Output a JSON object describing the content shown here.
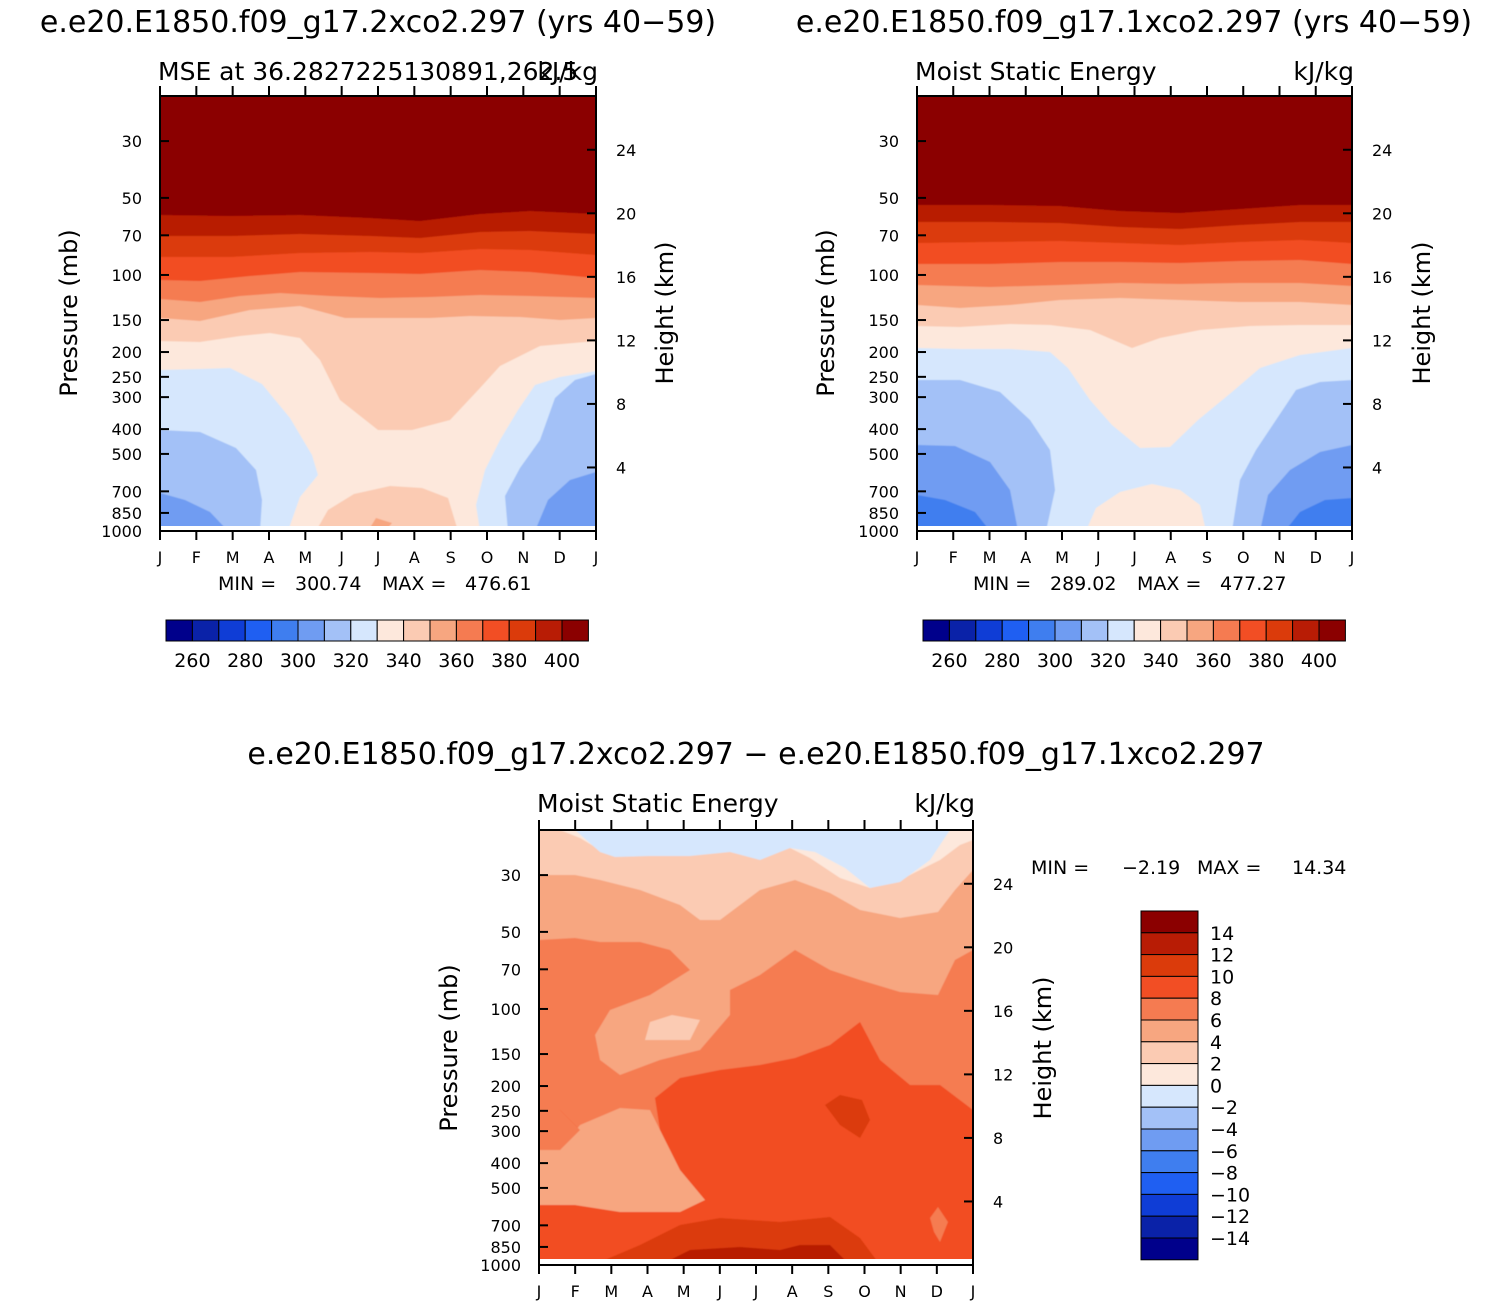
{
  "chart_data": [
    {
      "type": "contour",
      "id": "left",
      "title": "e.e20.E1850.f09_g17.2xco2.297 (yrs 40−59)",
      "subtitle_left": "MSE at 36.2827225130891,262.5",
      "subtitle_right": "kJ/kg",
      "ylabel": "Pressure (mb)",
      "ylabel_right": "Height (km)",
      "x_ticks": [
        "J",
        "F",
        "M",
        "A",
        "M",
        "J",
        "J",
        "A",
        "S",
        "O",
        "N",
        "D",
        "J"
      ],
      "p_ticks": [
        30,
        50,
        70,
        100,
        150,
        200,
        250,
        300,
        400,
        500,
        700,
        850,
        1000
      ],
      "height_ticks": [
        24,
        20,
        16,
        12,
        8,
        4
      ],
      "min_label": "MIN =",
      "min": "300.74",
      "max_label": "MAX =",
      "max": "476.61",
      "colorbar_labels": [
        "260",
        "280",
        "300",
        "320",
        "340",
        "360",
        "380",
        "400"
      ],
      "colorbar_colors": [
        "#00008b",
        "#0a22a8",
        "#0f3dd6",
        "#1f5ff2",
        "#3f7eef",
        "#6f9cf2",
        "#a3c1f7",
        "#d6e7fd",
        "#fde8dc",
        "#fbcbb3",
        "#f7a680",
        "#f57b51",
        "#f24e24",
        "#db3b0b",
        "#b81c05",
        "#8b0000"
      ],
      "levels": [
        250,
        260,
        270,
        280,
        290,
        300,
        310,
        320,
        330,
        340,
        350,
        360,
        370,
        380,
        390,
        400
      ]
    },
    {
      "type": "contour",
      "id": "right",
      "title": "e.e20.E1850.f09_g17.1xco2.297 (yrs 40−59)",
      "subtitle_left": "Moist Static Energy",
      "subtitle_right": "kJ/kg",
      "ylabel": "Pressure (mb)",
      "ylabel_right": "Height (km)",
      "x_ticks": [
        "J",
        "F",
        "M",
        "A",
        "M",
        "J",
        "J",
        "A",
        "S",
        "O",
        "N",
        "D",
        "J"
      ],
      "p_ticks": [
        30,
        50,
        70,
        100,
        150,
        200,
        250,
        300,
        400,
        500,
        700,
        850,
        1000
      ],
      "height_ticks": [
        24,
        20,
        16,
        12,
        8,
        4
      ],
      "min_label": "MIN =",
      "min": "289.02",
      "max_label": "MAX =",
      "max": "477.27",
      "colorbar_labels": [
        "260",
        "280",
        "300",
        "320",
        "340",
        "360",
        "380",
        "400"
      ],
      "colorbar_colors": [
        "#00008b",
        "#0a22a8",
        "#0f3dd6",
        "#1f5ff2",
        "#3f7eef",
        "#6f9cf2",
        "#a3c1f7",
        "#d6e7fd",
        "#fde8dc",
        "#fbcbb3",
        "#f7a680",
        "#f57b51",
        "#f24e24",
        "#db3b0b",
        "#b81c05",
        "#8b0000"
      ],
      "levels": [
        250,
        260,
        270,
        280,
        290,
        300,
        310,
        320,
        330,
        340,
        350,
        360,
        370,
        380,
        390,
        400
      ]
    },
    {
      "type": "contour",
      "id": "diff",
      "title": "e.e20.E1850.f09_g17.2xco2.297 − e.e20.E1850.f09_g17.1xco2.297",
      "subtitle_left": "Moist Static Energy",
      "subtitle_right": "kJ/kg",
      "ylabel": "Pressure (mb)",
      "ylabel_right": "Height (km)",
      "x_ticks": [
        "J",
        "F",
        "M",
        "A",
        "M",
        "J",
        "J",
        "A",
        "S",
        "O",
        "N",
        "D",
        "J"
      ],
      "p_ticks": [
        30,
        50,
        70,
        100,
        150,
        200,
        250,
        300,
        400,
        500,
        700,
        850,
        1000
      ],
      "height_ticks": [
        24,
        20,
        16,
        12,
        8,
        4
      ],
      "min_label": "MIN =",
      "min": "−2.19",
      "max_label": "MAX =",
      "max": "14.34",
      "colorbar_labels": [
        "14",
        "12",
        "10",
        "8",
        "6",
        "4",
        "2",
        "0",
        "−2",
        "−4",
        "−6",
        "−8",
        "−10",
        "−12",
        "−14"
      ],
      "colorbar_colors": [
        "#8b0000",
        "#b81c05",
        "#db3b0b",
        "#f24e24",
        "#f57b51",
        "#f7a680",
        "#fbcbb3",
        "#fde8dc",
        "#d6e7fd",
        "#a3c1f7",
        "#6f9cf2",
        "#3f7eef",
        "#1f5ff2",
        "#0f3dd6",
        "#0a22a8",
        "#00008b"
      ]
    }
  ]
}
